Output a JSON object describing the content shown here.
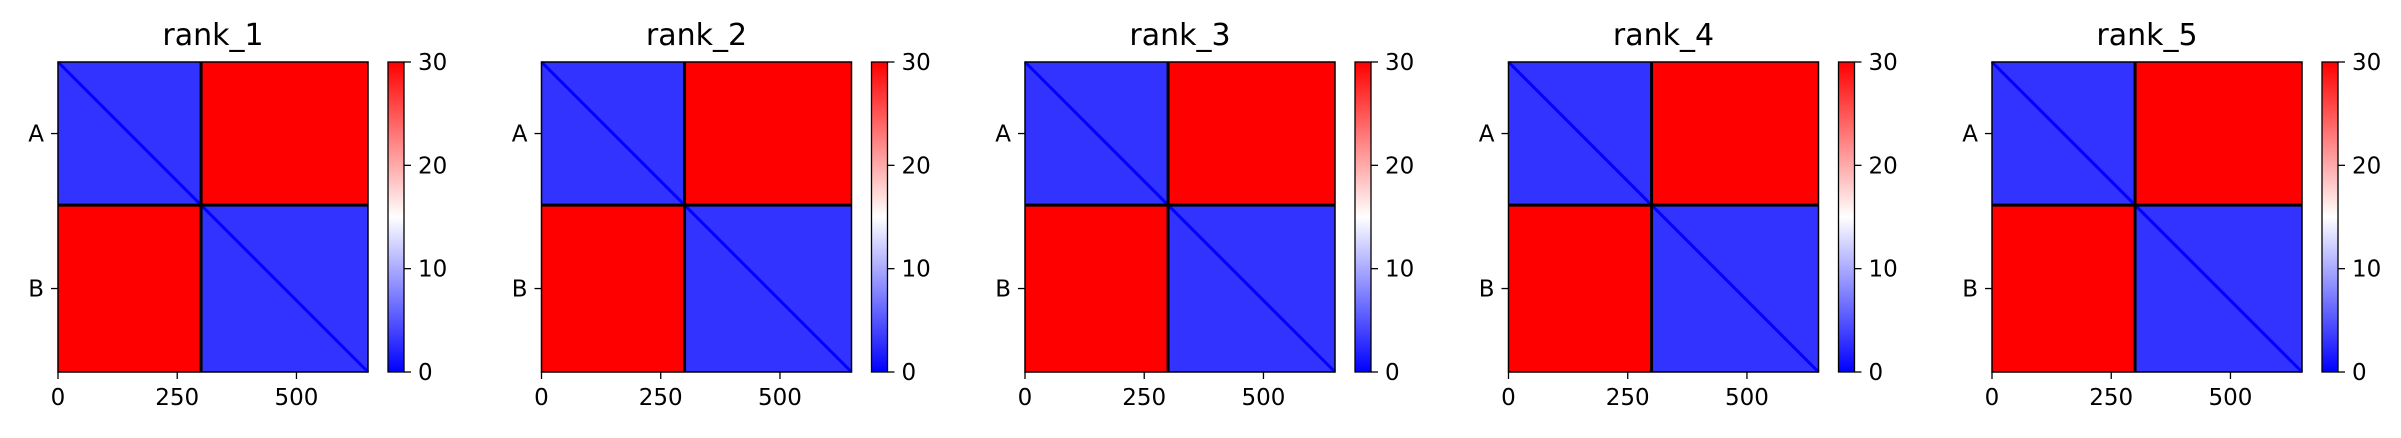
{
  "figure": {
    "colormap": {
      "name": "bwr",
      "colors": [
        "#0000ff",
        "#ffffff",
        "#ff0000"
      ],
      "vmin": 0,
      "vmax": 30,
      "ticks": [
        0,
        10,
        20,
        30
      ],
      "tick_labels": [
        "0",
        "10",
        "20",
        "30"
      ]
    },
    "boundary_color": "#000000"
  },
  "chart_data": [
    {
      "type": "heatmap",
      "title": "rank_1",
      "xlabel": "",
      "ylabel": "",
      "x_ticks": [
        0,
        250,
        500
      ],
      "x_tick_labels": [
        "0",
        "250",
        "500"
      ],
      "y_ticks": [
        "A",
        "B"
      ],
      "xlim": [
        0,
        650
      ],
      "ylim": [
        650,
        0
      ],
      "chains": [
        {
          "name": "A",
          "start": 0,
          "end": 300
        },
        {
          "name": "B",
          "start": 300,
          "end": 650
        }
      ],
      "value_range": [
        0,
        30
      ],
      "blocks": [
        {
          "rows": "A",
          "cols": "A",
          "typical_value": 3
        },
        {
          "rows": "A",
          "cols": "B",
          "typical_value": 30
        },
        {
          "rows": "B",
          "cols": "A",
          "typical_value": 30
        },
        {
          "rows": "B",
          "cols": "B",
          "typical_value": 3
        }
      ]
    },
    {
      "type": "heatmap",
      "title": "rank_2",
      "xlabel": "",
      "ylabel": "",
      "x_ticks": [
        0,
        250,
        500
      ],
      "x_tick_labels": [
        "0",
        "250",
        "500"
      ],
      "y_ticks": [
        "A",
        "B"
      ],
      "xlim": [
        0,
        650
      ],
      "ylim": [
        650,
        0
      ],
      "chains": [
        {
          "name": "A",
          "start": 0,
          "end": 300
        },
        {
          "name": "B",
          "start": 300,
          "end": 650
        }
      ],
      "value_range": [
        0,
        30
      ],
      "blocks": [
        {
          "rows": "A",
          "cols": "A",
          "typical_value": 3
        },
        {
          "rows": "A",
          "cols": "B",
          "typical_value": 30
        },
        {
          "rows": "B",
          "cols": "A",
          "typical_value": 30
        },
        {
          "rows": "B",
          "cols": "B",
          "typical_value": 3
        }
      ]
    },
    {
      "type": "heatmap",
      "title": "rank_3",
      "xlabel": "",
      "ylabel": "",
      "x_ticks": [
        0,
        250,
        500
      ],
      "x_tick_labels": [
        "0",
        "250",
        "500"
      ],
      "y_ticks": [
        "A",
        "B"
      ],
      "xlim": [
        0,
        650
      ],
      "ylim": [
        650,
        0
      ],
      "chains": [
        {
          "name": "A",
          "start": 0,
          "end": 300
        },
        {
          "name": "B",
          "start": 300,
          "end": 650
        }
      ],
      "value_range": [
        0,
        30
      ],
      "blocks": [
        {
          "rows": "A",
          "cols": "A",
          "typical_value": 3
        },
        {
          "rows": "A",
          "cols": "B",
          "typical_value": 30
        },
        {
          "rows": "B",
          "cols": "A",
          "typical_value": 30
        },
        {
          "rows": "B",
          "cols": "B",
          "typical_value": 3
        }
      ]
    },
    {
      "type": "heatmap",
      "title": "rank_4",
      "xlabel": "",
      "ylabel": "",
      "x_ticks": [
        0,
        250,
        500
      ],
      "x_tick_labels": [
        "0",
        "250",
        "500"
      ],
      "y_ticks": [
        "A",
        "B"
      ],
      "xlim": [
        0,
        650
      ],
      "ylim": [
        650,
        0
      ],
      "chains": [
        {
          "name": "A",
          "start": 0,
          "end": 300
        },
        {
          "name": "B",
          "start": 300,
          "end": 650
        }
      ],
      "value_range": [
        0,
        30
      ],
      "blocks": [
        {
          "rows": "A",
          "cols": "A",
          "typical_value": 3
        },
        {
          "rows": "A",
          "cols": "B",
          "typical_value": 30
        },
        {
          "rows": "B",
          "cols": "A",
          "typical_value": 30
        },
        {
          "rows": "B",
          "cols": "B",
          "typical_value": 3
        }
      ]
    },
    {
      "type": "heatmap",
      "title": "rank_5",
      "xlabel": "",
      "ylabel": "",
      "x_ticks": [
        0,
        250,
        500
      ],
      "x_tick_labels": [
        "0",
        "250",
        "500"
      ],
      "y_ticks": [
        "A",
        "B"
      ],
      "xlim": [
        0,
        650
      ],
      "ylim": [
        650,
        0
      ],
      "chains": [
        {
          "name": "A",
          "start": 0,
          "end": 300
        },
        {
          "name": "B",
          "start": 300,
          "end": 650
        }
      ],
      "value_range": [
        0,
        30
      ],
      "blocks": [
        {
          "rows": "A",
          "cols": "A",
          "typical_value": 3
        },
        {
          "rows": "A",
          "cols": "B",
          "typical_value": 30
        },
        {
          "rows": "B",
          "cols": "A",
          "typical_value": 30
        },
        {
          "rows": "B",
          "cols": "B",
          "typical_value": 3
        }
      ]
    }
  ]
}
